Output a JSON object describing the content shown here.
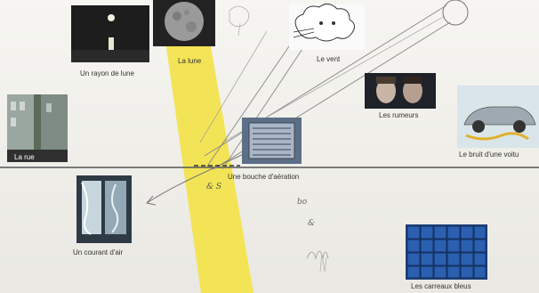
{
  "labels": {
    "rayon_de_lune": "Un rayon de lune",
    "la_lune": "La lune",
    "le_vent": "Le vent",
    "la_rue": "La rue",
    "les_rumeurs": "Les rumeurs",
    "le_bruit": "Le bruit d'une voitu",
    "bouche_aeration": "Une bouche d'aération",
    "courant_air": "Un courant d'air",
    "carreaux_bleus": "Les carreaux bleus"
  },
  "handwriting": {
    "ampersand": "& S",
    "bo": "bo",
    "mark": "&"
  },
  "colors": {
    "paper": "#f3f2ee",
    "highlighter": "#f3e34a",
    "pencil": "#6d6d6d",
    "tile_blue": "#2b5fb0"
  }
}
